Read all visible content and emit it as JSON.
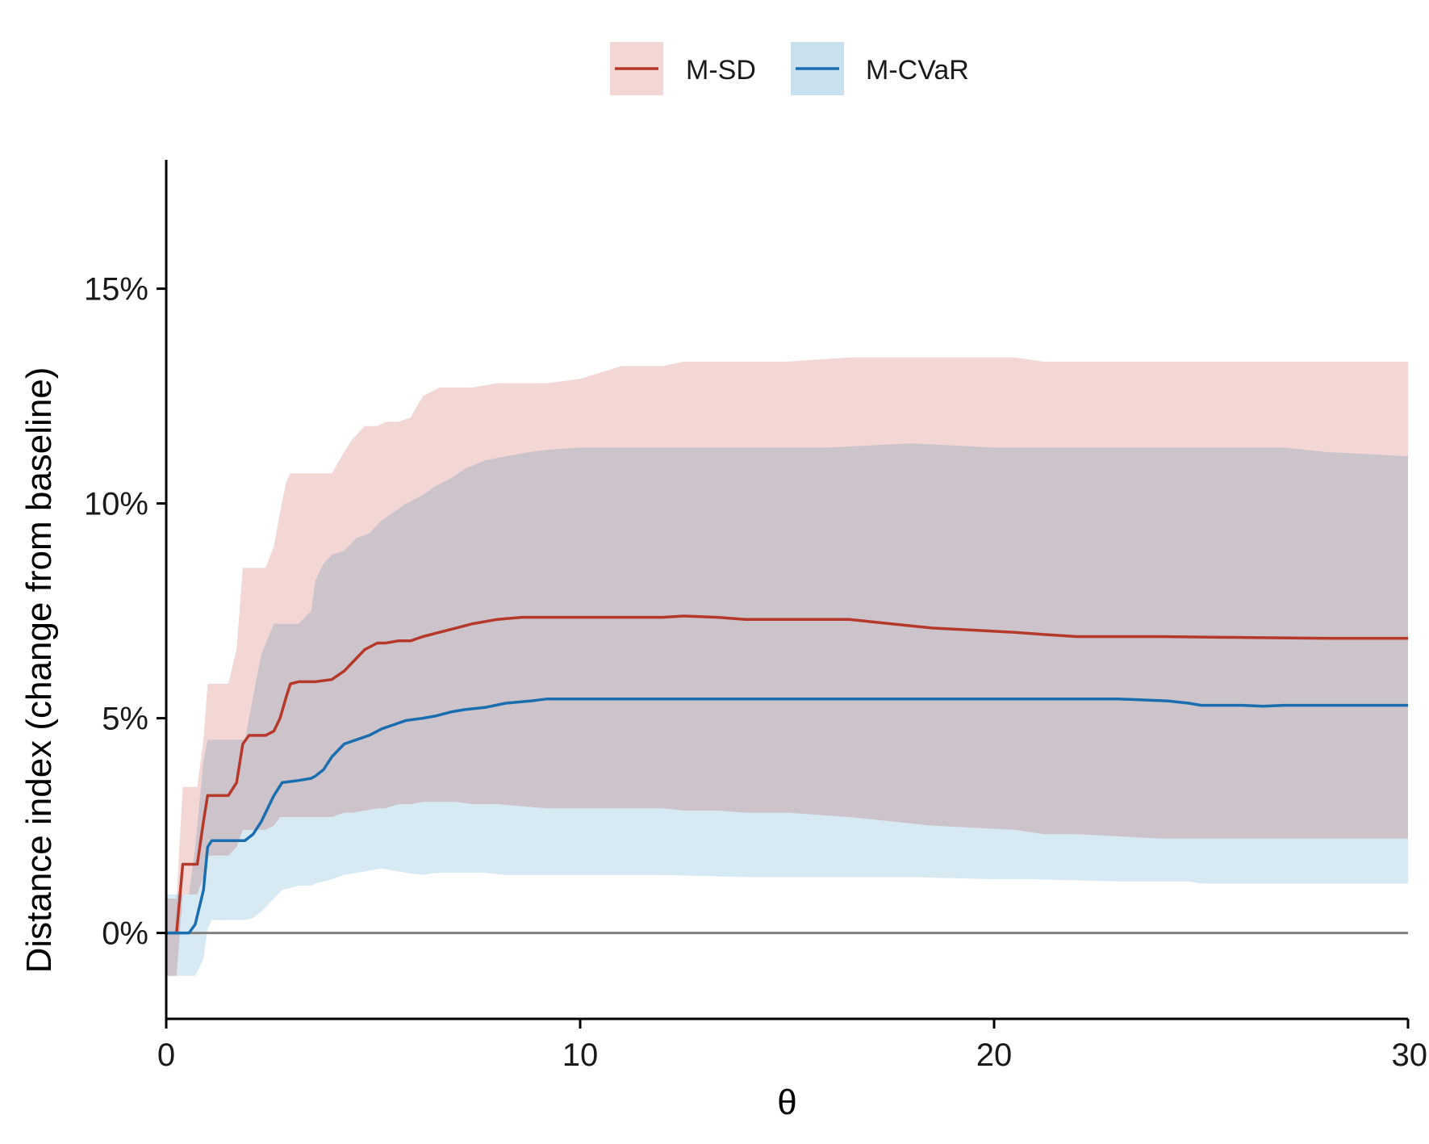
{
  "chart_data": {
    "type": "line",
    "title": "",
    "xlabel": "θ",
    "ylabel": "Distance index (change from baseline)",
    "xlim": [
      0,
      30
    ],
    "ylim": [
      -2,
      18
    ],
    "x_ticks": [
      0,
      10,
      20,
      30
    ],
    "x_tick_labels": [
      "0",
      "10",
      "20",
      "30"
    ],
    "y_ticks": [
      0,
      5,
      10,
      15
    ],
    "y_tick_labels": [
      "0%",
      "5%",
      "10%",
      "15%"
    ],
    "reference_line": 0,
    "reference_color": "#808080",
    "grid": false,
    "legend_position": "top-center",
    "series": [
      {
        "name": "M-SD",
        "color": "#b5382a",
        "band_color": "#f2d7d4",
        "x": [
          0,
          0.25,
          0.4,
          0.75,
          0.9,
          1.0,
          1.5,
          1.7,
          1.85,
          2.0,
          2.4,
          2.6,
          2.75,
          2.9,
          3.0,
          3.2,
          3.6,
          4.0,
          4.3,
          4.5,
          4.8,
          5.1,
          5.3,
          5.6,
          5.9,
          6.2,
          6.6,
          7.0,
          7.4,
          8.0,
          8.6,
          9.2,
          10.0,
          11.0,
          12.0,
          12.5,
          13.3,
          14.0,
          15.0,
          16.5,
          17.5,
          18.5,
          19.5,
          20.5,
          21.2,
          22.0,
          24.0,
          26.0,
          28.0,
          30.0
        ],
        "values": [
          0,
          0,
          1.6,
          1.6,
          2.6,
          3.2,
          3.2,
          3.5,
          4.4,
          4.6,
          4.6,
          4.7,
          5.0,
          5.5,
          5.8,
          5.85,
          5.85,
          5.9,
          6.1,
          6.3,
          6.6,
          6.75,
          6.75,
          6.8,
          6.8,
          6.9,
          7.0,
          7.1,
          7.2,
          7.3,
          7.35,
          7.35,
          7.35,
          7.35,
          7.35,
          7.38,
          7.35,
          7.3,
          7.3,
          7.3,
          7.2,
          7.1,
          7.05,
          7.0,
          6.95,
          6.9,
          6.9,
          6.88,
          6.86,
          6.86
        ],
        "lower": [
          -1.0,
          -1.0,
          0.9,
          0.9,
          1.3,
          1.8,
          1.8,
          2.0,
          2.4,
          2.4,
          2.4,
          2.5,
          2.7,
          2.7,
          2.7,
          2.7,
          2.7,
          2.7,
          2.8,
          2.8,
          2.85,
          2.9,
          2.9,
          3.0,
          3.0,
          3.05,
          3.05,
          3.05,
          3.0,
          3.0,
          2.95,
          2.9,
          2.9,
          2.9,
          2.9,
          2.85,
          2.85,
          2.8,
          2.8,
          2.7,
          2.6,
          2.5,
          2.45,
          2.4,
          2.3,
          2.3,
          2.2,
          2.2,
          2.2,
          2.2
        ],
        "upper": [
          0.8,
          0.8,
          3.4,
          3.4,
          4.5,
          5.8,
          5.8,
          6.6,
          8.5,
          8.5,
          8.5,
          9.0,
          9.8,
          10.5,
          10.7,
          10.7,
          10.7,
          10.7,
          11.2,
          11.5,
          11.8,
          11.8,
          11.9,
          11.9,
          12.0,
          12.5,
          12.7,
          12.7,
          12.7,
          12.8,
          12.8,
          12.8,
          12.9,
          13.2,
          13.2,
          13.3,
          13.3,
          13.3,
          13.3,
          13.4,
          13.4,
          13.4,
          13.4,
          13.4,
          13.3,
          13.3,
          13.3,
          13.3,
          13.3,
          13.3
        ]
      },
      {
        "name": "M-CVaR",
        "color": "#1a6eb0",
        "band_color": "#c9e1ef",
        "x": [
          0,
          0.55,
          0.7,
          0.9,
          1.0,
          1.1,
          1.5,
          1.9,
          2.1,
          2.3,
          2.6,
          2.8,
          3.2,
          3.5,
          3.6,
          3.8,
          4.0,
          4.3,
          4.6,
          4.9,
          5.2,
          5.5,
          5.8,
          6.2,
          6.5,
          6.9,
          7.2,
          7.7,
          8.2,
          8.8,
          9.2,
          10.0,
          12.0,
          14.0,
          16.0,
          18.0,
          20.0,
          21.0,
          23.0,
          24.2,
          24.7,
          25.0,
          26.0,
          26.5,
          27.0,
          28.0,
          30.0
        ],
        "values": [
          0,
          0,
          0.2,
          1.0,
          2.0,
          2.15,
          2.15,
          2.15,
          2.3,
          2.6,
          3.2,
          3.5,
          3.55,
          3.6,
          3.65,
          3.8,
          4.1,
          4.4,
          4.5,
          4.6,
          4.75,
          4.85,
          4.95,
          5.0,
          5.05,
          5.15,
          5.2,
          5.25,
          5.35,
          5.4,
          5.45,
          5.45,
          5.45,
          5.45,
          5.45,
          5.45,
          5.45,
          5.45,
          5.45,
          5.4,
          5.35,
          5.3,
          5.3,
          5.28,
          5.3,
          5.3,
          5.3
        ],
        "lower": [
          -1.0,
          -1.0,
          -1.0,
          -0.6,
          0.1,
          0.3,
          0.3,
          0.3,
          0.35,
          0.5,
          0.8,
          1.0,
          1.1,
          1.1,
          1.15,
          1.2,
          1.25,
          1.35,
          1.4,
          1.45,
          1.5,
          1.45,
          1.4,
          1.35,
          1.4,
          1.4,
          1.4,
          1.4,
          1.35,
          1.35,
          1.35,
          1.35,
          1.35,
          1.3,
          1.3,
          1.3,
          1.25,
          1.25,
          1.2,
          1.2,
          1.2,
          1.15,
          1.15,
          1.15,
          1.15,
          1.15,
          1.15
        ],
        "upper": [
          0.9,
          0.9,
          2.0,
          4.0,
          4.5,
          4.5,
          4.5,
          4.5,
          5.5,
          6.5,
          7.2,
          7.2,
          7.2,
          7.5,
          8.2,
          8.6,
          8.8,
          8.9,
          9.2,
          9.3,
          9.6,
          9.8,
          10.0,
          10.2,
          10.4,
          10.6,
          10.8,
          11.0,
          11.1,
          11.2,
          11.25,
          11.3,
          11.3,
          11.3,
          11.3,
          11.4,
          11.3,
          11.3,
          11.3,
          11.3,
          11.3,
          11.3,
          11.3,
          11.3,
          11.3,
          11.2,
          11.1
        ]
      }
    ]
  }
}
